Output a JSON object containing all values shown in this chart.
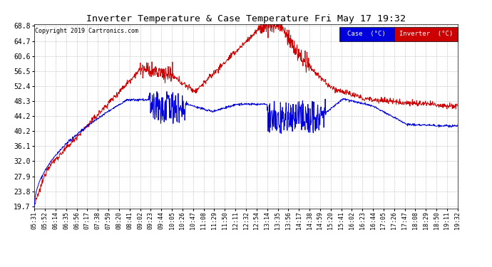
{
  "title": "Inverter Temperature & Case Temperature Fri May 17 19:32",
  "copyright": "Copyright 2019 Cartronics.com",
  "background_color": "#ffffff",
  "plot_bg_color": "#ffffff",
  "grid_color": "#bbbbbb",
  "yticks": [
    19.7,
    23.8,
    27.9,
    32.0,
    36.1,
    40.2,
    44.2,
    48.3,
    52.4,
    56.5,
    60.6,
    64.7,
    68.8
  ],
  "ymin": 19.7,
  "ymax": 68.8,
  "xtick_labels": [
    "05:31",
    "05:52",
    "06:14",
    "06:35",
    "06:56",
    "07:17",
    "07:38",
    "07:59",
    "08:20",
    "08:41",
    "09:02",
    "09:23",
    "09:44",
    "10:05",
    "10:26",
    "10:47",
    "11:08",
    "11:29",
    "11:50",
    "12:11",
    "12:32",
    "12:54",
    "13:14",
    "13:35",
    "13:56",
    "14:17",
    "14:38",
    "14:59",
    "15:20",
    "15:41",
    "16:02",
    "16:23",
    "16:44",
    "17:05",
    "17:26",
    "17:47",
    "18:08",
    "18:29",
    "18:50",
    "19:11",
    "19:32"
  ],
  "legend_case_label": "Case  (°C)",
  "legend_inverter_label": "Inverter  (°C)",
  "legend_case_color": "#0000dd",
  "legend_inverter_color": "#cc0000",
  "line_case_color": "#0000dd",
  "line_inverter_color": "#cc0000"
}
